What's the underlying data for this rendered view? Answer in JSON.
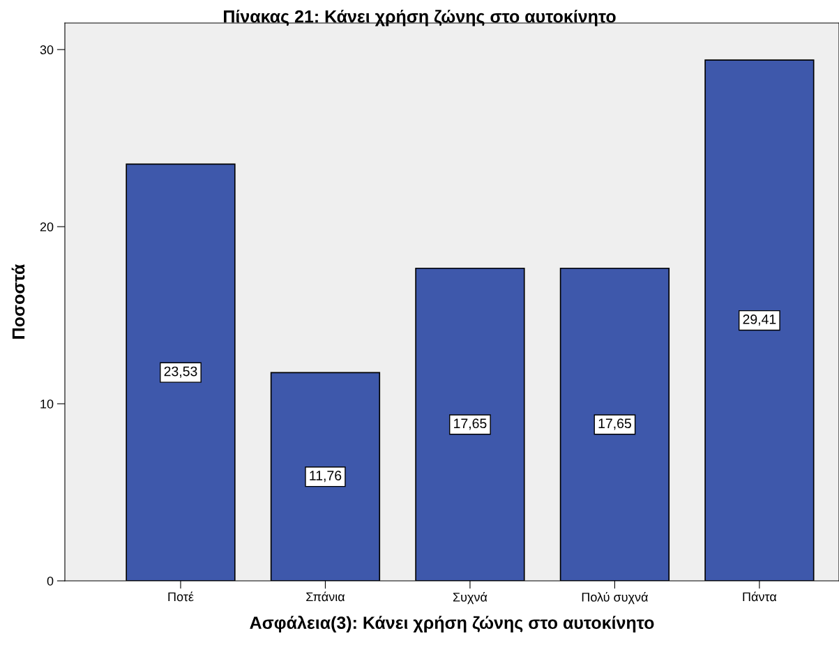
{
  "chart_data": {
    "type": "bar",
    "title": "Πίνακας 21: Κάνει χρήση ζώνης στο αυτοκίνητο",
    "xlabel": "Ασφάλεια(3): Κάνει χρήση ζώνης στο αυτοκίνητο",
    "ylabel": "Ποσοστά",
    "categories": [
      "Ποτέ",
      "Σπάνια",
      "Συχνά",
      "Πολύ συχνά",
      "Πάντα"
    ],
    "values": [
      23.53,
      11.76,
      17.65,
      17.65,
      29.41
    ],
    "value_labels": [
      "23,53",
      "11,76",
      "17,65",
      "17,65",
      "29,41"
    ],
    "color": "#3e58ab",
    "ylim": [
      0,
      31.5
    ],
    "yticks": [
      0,
      10,
      20,
      30
    ],
    "grid": false
  }
}
